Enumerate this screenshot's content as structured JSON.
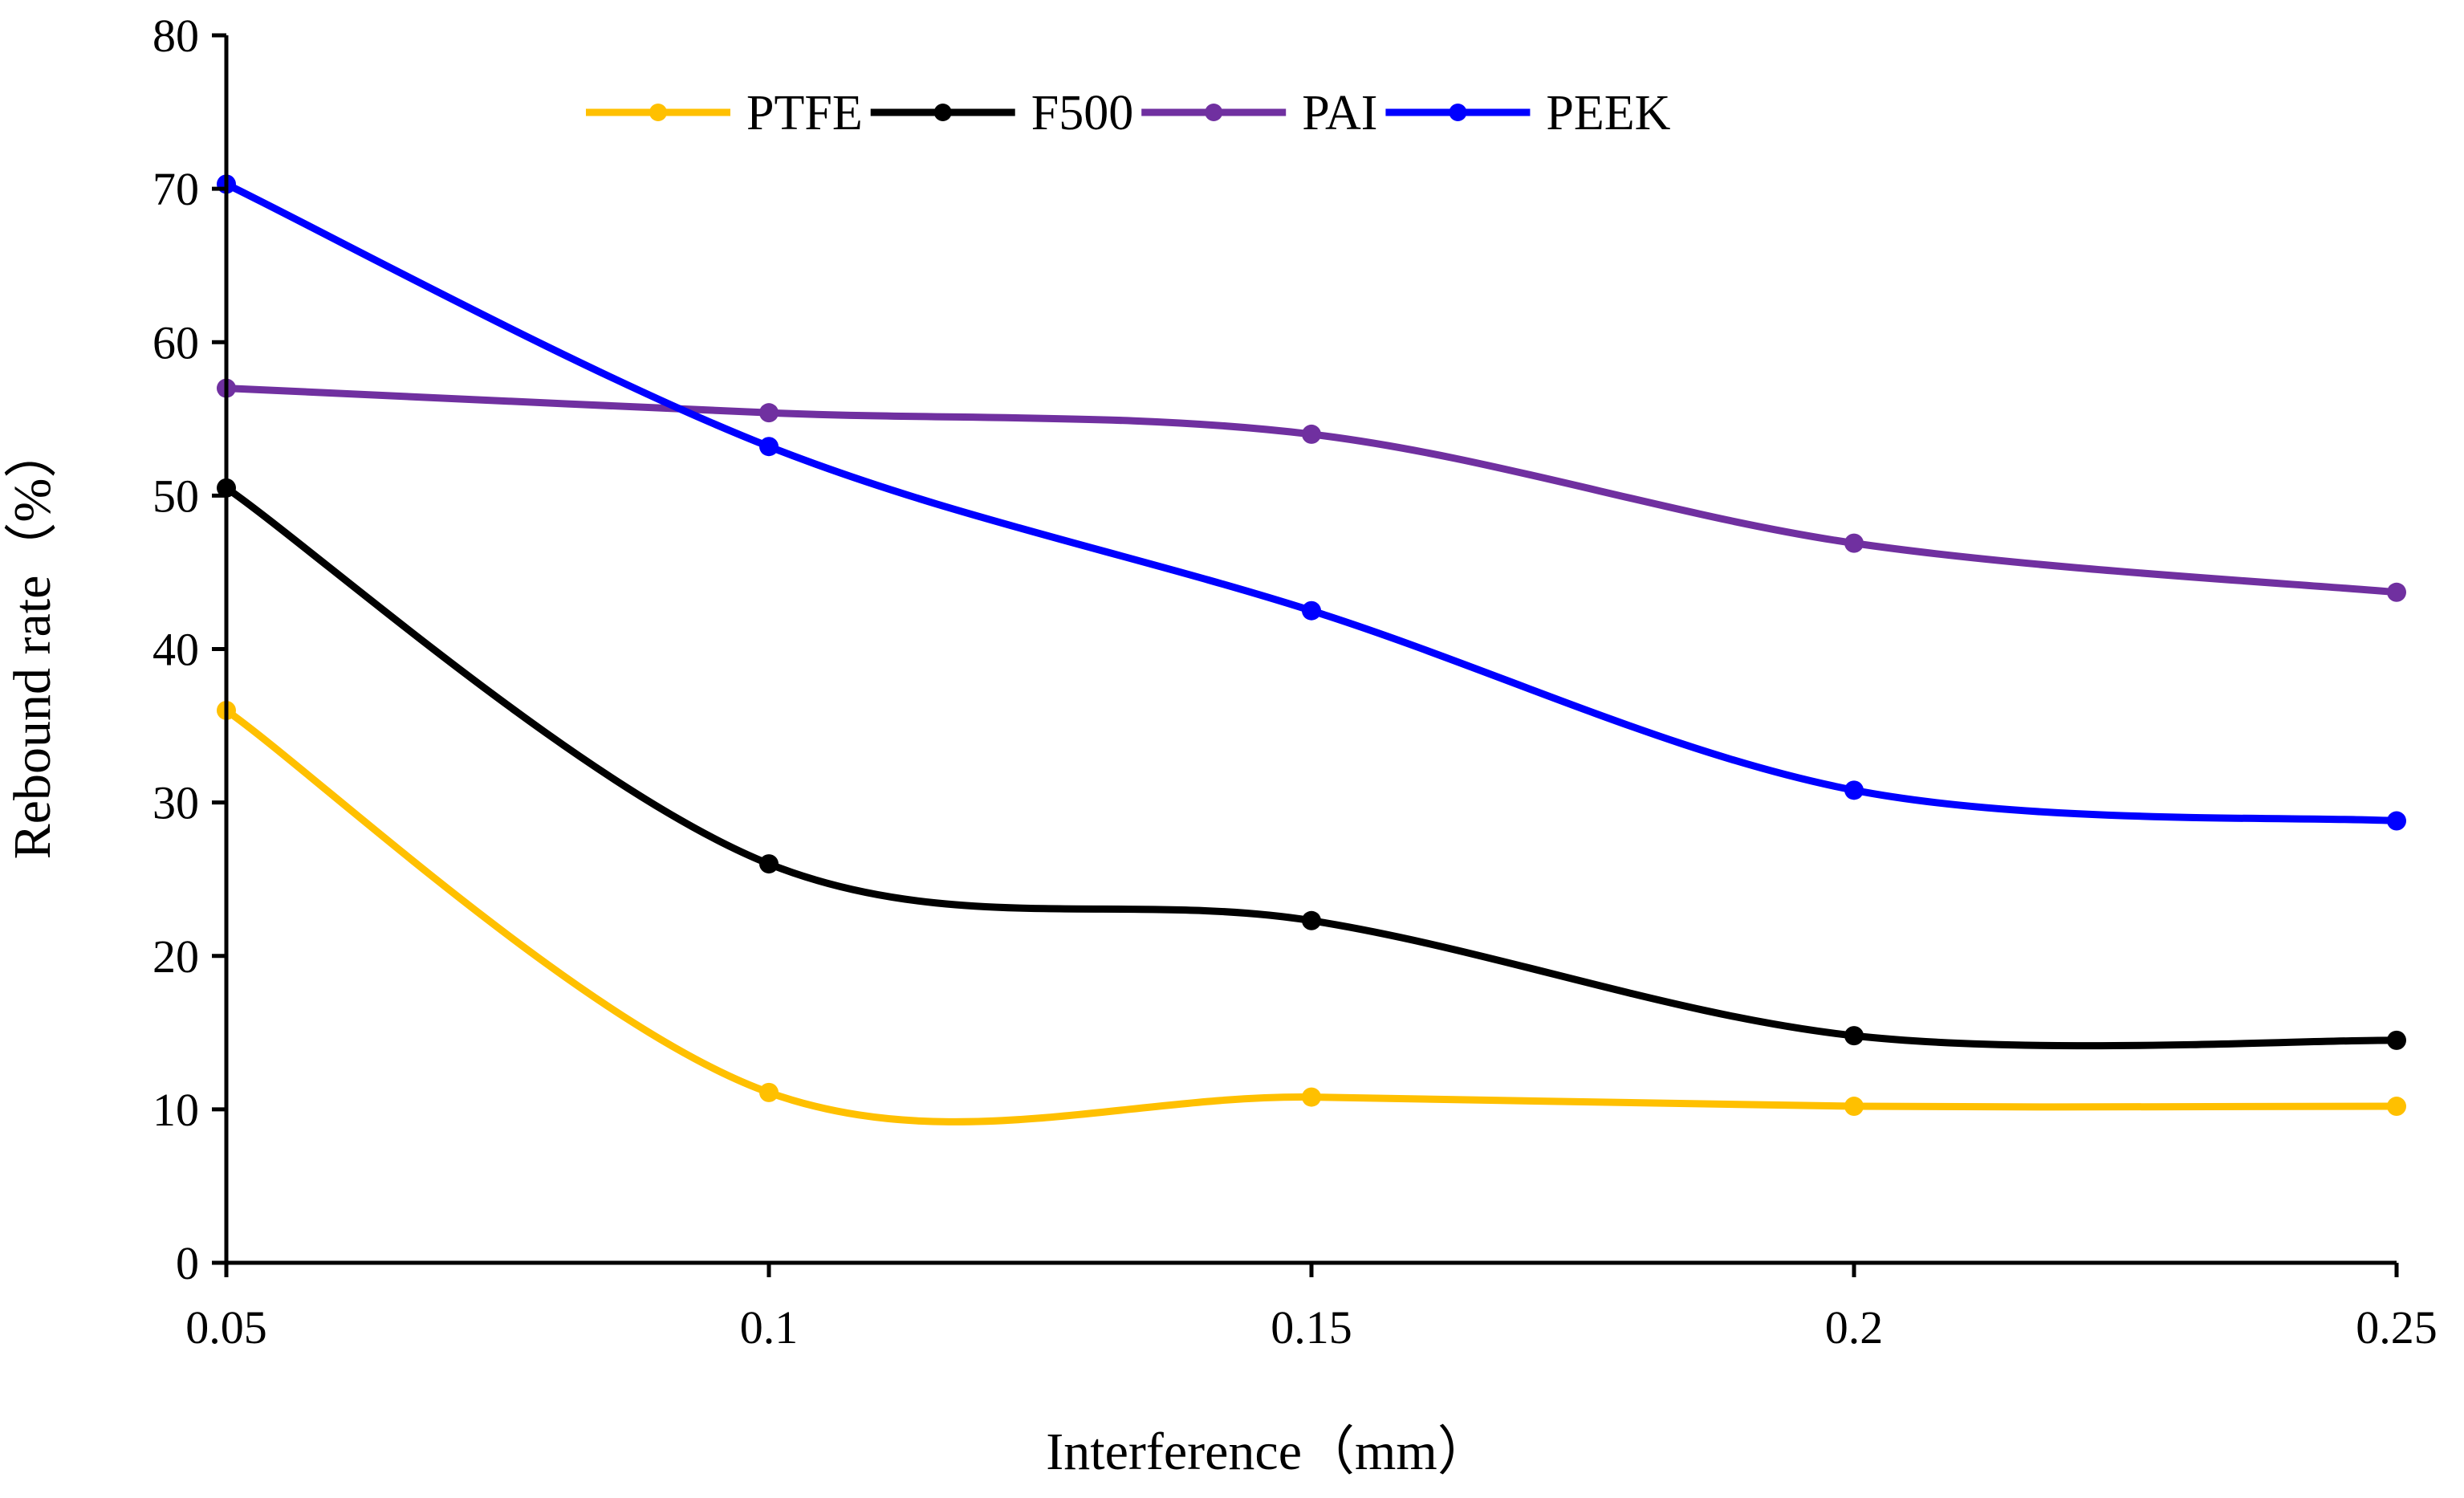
{
  "chart_data": {
    "type": "line",
    "smooth": true,
    "x": [
      0.05,
      0.1,
      0.15,
      0.2,
      0.25
    ],
    "x_tick_labels": [
      "0.05",
      "0.1",
      "0.15",
      "0.2",
      "0.25"
    ],
    "xlim": [
      0.05,
      0.25
    ],
    "ylim": [
      0,
      80
    ],
    "y_ticks": [
      0,
      10,
      20,
      30,
      40,
      50,
      60,
      70,
      80
    ],
    "y_tick_labels": [
      "0",
      "10",
      "20",
      "30",
      "40",
      "50",
      "60",
      "70",
      "80"
    ],
    "xlabel": "Interference（mm）",
    "ylabel": "Rebound rate（%）",
    "grid": false,
    "legend_position": "top",
    "series": [
      {
        "name": "PTFE",
        "color": "#FFC000",
        "values": [
          36.0,
          11.1,
          10.8,
          10.2,
          10.2
        ]
      },
      {
        "name": "F500",
        "color": "#000000",
        "values": [
          50.5,
          26.0,
          22.3,
          14.8,
          14.5
        ]
      },
      {
        "name": "PAI",
        "color": "#7030A0",
        "values": [
          57.0,
          55.4,
          54.0,
          46.9,
          43.7
        ]
      },
      {
        "name": "PEEK",
        "color": "#0000FF",
        "values": [
          70.3,
          53.2,
          42.5,
          30.8,
          28.8
        ]
      }
    ]
  }
}
